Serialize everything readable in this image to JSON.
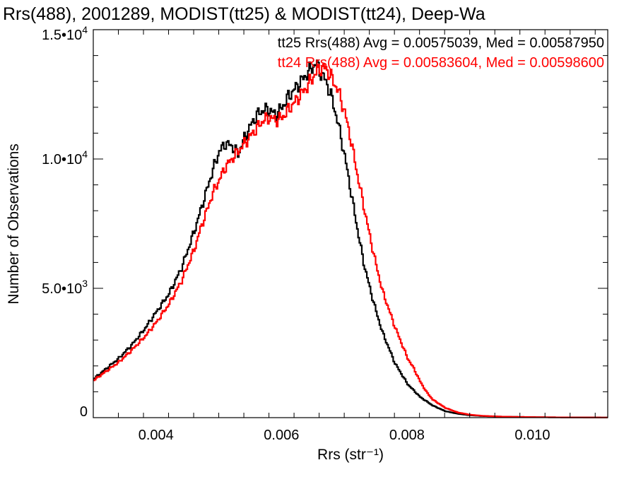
{
  "chart_data": {
    "type": "line",
    "title": "Rrs(488), 2001289, MODIST(tt25) & MODIST(tt24), Deep-Wa",
    "xlabel": "Rrs (str⁻¹)",
    "ylabel": "Number of Observations",
    "xlim": [
      0.003,
      0.0112
    ],
    "ylim": [
      0,
      15000
    ],
    "x_ticks": [
      {
        "value": 0.004,
        "label": "0.004"
      },
      {
        "value": 0.006,
        "label": "0.006"
      },
      {
        "value": 0.008,
        "label": "0.008"
      },
      {
        "value": 0.01,
        "label": "0.010"
      }
    ],
    "y_ticks": [
      {
        "value": 0,
        "mantissa": "0",
        "exp": ""
      },
      {
        "value": 5000,
        "mantissa": "5.0•10",
        "exp": "3"
      },
      {
        "value": 10000,
        "mantissa": "1.0•10",
        "exp": "4"
      },
      {
        "value": 15000,
        "mantissa": "1.5•10",
        "exp": "4"
      }
    ],
    "legend_position": "top-right",
    "grid": false,
    "series": [
      {
        "name": "tt25",
        "color": "#000000",
        "legend": "tt25 Rrs(488) Avg = 0.00575039, Med = 0.00587950",
        "x": [
          0.003,
          0.0032,
          0.0034,
          0.0036,
          0.0038,
          0.004,
          0.0042,
          0.0044,
          0.0046,
          0.0047,
          0.0048,
          0.0049,
          0.005,
          0.0051,
          0.0052,
          0.0053,
          0.0054,
          0.0055,
          0.0056,
          0.0057,
          0.0058,
          0.0059,
          0.006,
          0.0061,
          0.0062,
          0.0063,
          0.0064,
          0.0065,
          0.00655,
          0.0066,
          0.0067,
          0.0068,
          0.0069,
          0.007,
          0.0071,
          0.0072,
          0.0073,
          0.0074,
          0.0075,
          0.0076,
          0.0077,
          0.0078,
          0.0079,
          0.008,
          0.0082,
          0.0084,
          0.0086,
          0.0088,
          0.009,
          0.0092,
          0.0095,
          0.01,
          0.0105,
          0.0112
        ],
        "y": [
          1500,
          1900,
          2300,
          2800,
          3400,
          4100,
          4800,
          5800,
          7200,
          8000,
          8800,
          9600,
          10300,
          10600,
          10500,
          10200,
          10800,
          11300,
          11700,
          11900,
          11900,
          11700,
          12000,
          12400,
          12700,
          13000,
          13300,
          13600,
          13700,
          13400,
          13000,
          12300,
          11300,
          10100,
          8700,
          7300,
          6000,
          5000,
          4100,
          3300,
          2700,
          2100,
          1700,
          1300,
          800,
          470,
          250,
          150,
          90,
          60,
          40,
          20,
          10,
          5
        ]
      },
      {
        "name": "tt24",
        "color": "#ff0000",
        "legend": "tt24 Rrs(488) Avg = 0.00583604, Med = 0.00598600",
        "x": [
          0.003,
          0.0032,
          0.0034,
          0.0036,
          0.0038,
          0.004,
          0.0042,
          0.0044,
          0.0046,
          0.0047,
          0.0048,
          0.0049,
          0.005,
          0.0051,
          0.0052,
          0.0053,
          0.0054,
          0.0055,
          0.0056,
          0.0057,
          0.0058,
          0.0059,
          0.006,
          0.0061,
          0.0062,
          0.0063,
          0.0064,
          0.0065,
          0.0066,
          0.0067,
          0.0068,
          0.0069,
          0.007,
          0.0071,
          0.0072,
          0.0073,
          0.0074,
          0.0075,
          0.0076,
          0.0077,
          0.0078,
          0.0079,
          0.008,
          0.0081,
          0.0082,
          0.0083,
          0.0084,
          0.0086,
          0.0088,
          0.009,
          0.0092,
          0.0095,
          0.01,
          0.0105,
          0.0112
        ],
        "y": [
          1450,
          1800,
          2150,
          2600,
          3100,
          3700,
          4400,
          5300,
          6500,
          7300,
          8000,
          8700,
          9200,
          9700,
          10000,
          10300,
          10600,
          10900,
          11200,
          11500,
          11600,
          11500,
          11600,
          11900,
          12200,
          12500,
          12800,
          13200,
          13500,
          13500,
          13100,
          12600,
          11800,
          10700,
          9400,
          8200,
          7000,
          5900,
          4900,
          4200,
          3500,
          2900,
          2300,
          1900,
          1400,
          1000,
          700,
          380,
          200,
          110,
          70,
          40,
          20,
          10,
          5
        ]
      }
    ]
  }
}
